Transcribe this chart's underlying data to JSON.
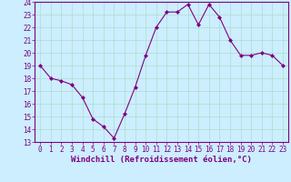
{
  "x": [
    0,
    1,
    2,
    3,
    4,
    5,
    6,
    7,
    8,
    9,
    10,
    11,
    12,
    13,
    14,
    15,
    16,
    17,
    18,
    19,
    20,
    21,
    22,
    23
  ],
  "y": [
    19.0,
    18.0,
    17.8,
    17.5,
    16.5,
    14.8,
    14.2,
    13.3,
    15.2,
    17.3,
    19.8,
    22.0,
    23.2,
    23.2,
    23.8,
    22.2,
    23.8,
    22.8,
    21.0,
    19.8,
    19.8,
    20.0,
    19.8,
    19.0
  ],
  "line_color": "#800080",
  "marker_color": "#800080",
  "bg_color": "#cceeff",
  "grid_color": "#aaddcc",
  "xlabel": "Windchill (Refroidissement éolien,°C)",
  "xlabel_color": "#800080",
  "ylim": [
    13,
    24
  ],
  "xlim": [
    -0.5,
    23.5
  ],
  "yticks": [
    13,
    14,
    15,
    16,
    17,
    18,
    19,
    20,
    21,
    22,
    23,
    24
  ],
  "xticks": [
    0,
    1,
    2,
    3,
    4,
    5,
    6,
    7,
    8,
    9,
    10,
    11,
    12,
    13,
    14,
    15,
    16,
    17,
    18,
    19,
    20,
    21,
    22,
    23
  ],
  "tick_color": "#800080",
  "tick_fontsize": 5.5,
  "xlabel_fontsize": 6.5
}
